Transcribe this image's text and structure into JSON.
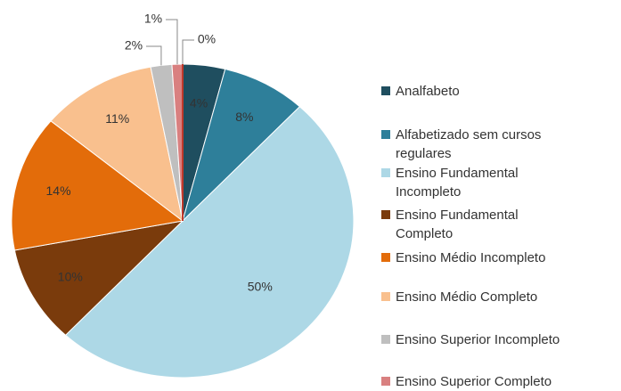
{
  "chart_data": {
    "type": "pie",
    "categories": [
      "Analfabeto",
      "Alfabetizado sem cursos regulares",
      "Ensino Fundamental Incompleto",
      "Ensino Fundamental Completo",
      "Ensino Médio Incompleto",
      "Ensino Médio Completo",
      "Ensino Superior Incompleto",
      "Ensino Superior Completo",
      null
    ],
    "values": [
      4,
      8,
      50,
      10,
      14,
      11,
      2,
      1,
      0
    ],
    "value_labels": [
      "4%",
      "8%",
      "50%",
      "10%",
      "14%",
      "11%",
      "2%",
      "1%",
      "0%"
    ],
    "colors": [
      "#1f4e5f",
      "#2e7f9a",
      "#add8e6",
      "#7a3b0c",
      "#e36c0a",
      "#f9c08e",
      "#bfbfbf",
      "#d98080",
      "#c0392b"
    ],
    "legend": "right"
  }
}
